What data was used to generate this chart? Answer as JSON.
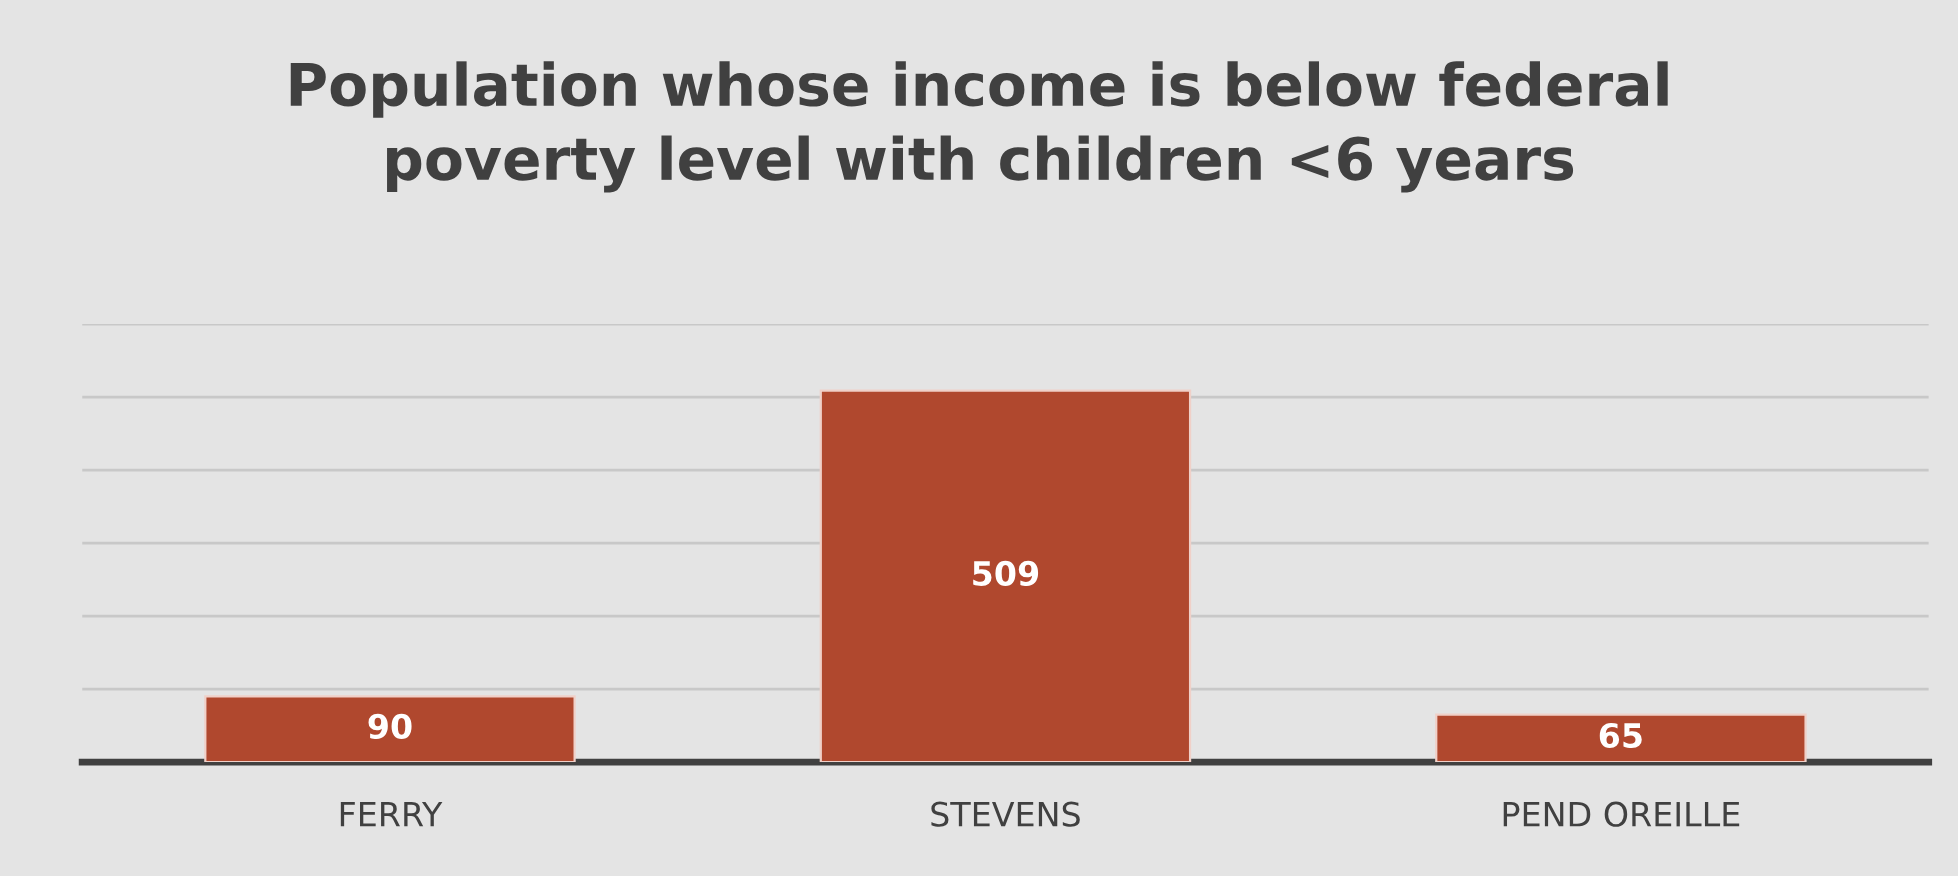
{
  "chart_data": {
    "type": "bar",
    "title": "Population whose income is below federal\npoverty level with children <6 years",
    "categories": [
      "FERRY",
      "STEVENS",
      "PEND OREILLE"
    ],
    "values": [
      90,
      509,
      65
    ],
    "color": "#b0482e",
    "ylim": [
      0,
      600
    ],
    "yticks": [
      {
        "value": 0,
        "label": null
      },
      {
        "value": 100,
        "label": null
      },
      {
        "value": 200,
        "label": null
      },
      {
        "value": 300,
        "label": null
      },
      {
        "value": 400,
        "label": null
      },
      {
        "value": 500,
        "label": null
      },
      {
        "value": 600,
        "label": null
      }
    ],
    "grid": "y",
    "tick_labels": "x",
    "data_labels": true
  }
}
